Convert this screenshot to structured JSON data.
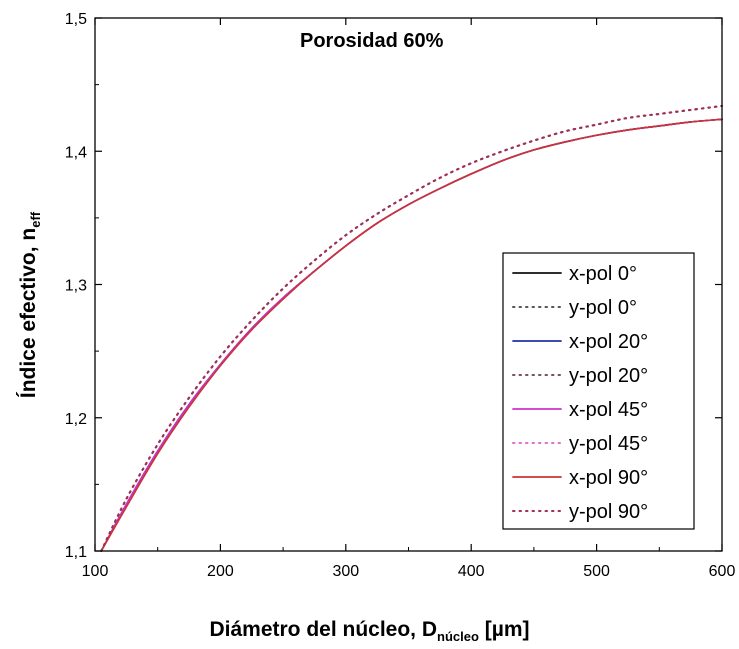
{
  "chart_data": {
    "type": "line",
    "annotation": "Porosidad 60%",
    "xlabel_main": "Diámetro del núcleo, D",
    "xlabel_sub": "núcleo",
    "xlabel_unit": " [µm]",
    "ylabel_main": "Índice efectivo, n",
    "ylabel_sub": "eff",
    "xlim": [
      100,
      600
    ],
    "ylim": [
      1.1,
      1.5
    ],
    "x_ticks": [
      100,
      200,
      300,
      400,
      500,
      600
    ],
    "x_tick_labels": [
      "100",
      "200",
      "300",
      "400",
      "500",
      "600"
    ],
    "y_ticks": [
      1.1,
      1.2,
      1.3,
      1.4,
      1.5
    ],
    "y_tick_labels": [
      "1,1",
      "1,2",
      "1,3",
      "1,4",
      "1,5"
    ],
    "grid": false,
    "legend_position": "right",
    "x": [
      105,
      125,
      150,
      175,
      200,
      225,
      250,
      275,
      300,
      325,
      350,
      375,
      400,
      425,
      450,
      475,
      500,
      525,
      550,
      575,
      600
    ],
    "series": [
      {
        "name": "x-pol 0°",
        "color": "#111111",
        "style": "solid",
        "values": [
          1.1,
          1.135,
          1.175,
          1.21,
          1.24,
          1.267,
          1.29,
          1.31,
          1.329,
          1.346,
          1.36,
          1.372,
          1.383,
          1.393,
          1.401,
          1.407,
          1.412,
          1.416,
          1.419,
          1.422,
          1.424
        ]
      },
      {
        "name": "y-pol 0°",
        "color": "#555555",
        "style": "dotted",
        "values": [
          1.1,
          1.139,
          1.18,
          1.215,
          1.246,
          1.273,
          1.297,
          1.318,
          1.337,
          1.353,
          1.367,
          1.38,
          1.391,
          1.4,
          1.408,
          1.415,
          1.42,
          1.425,
          1.428,
          1.431,
          1.434
        ]
      },
      {
        "name": "x-pol 20°",
        "color": "#2233aa",
        "style": "solid",
        "values": [
          1.1,
          1.135,
          1.175,
          1.21,
          1.24,
          1.267,
          1.29,
          1.31,
          1.329,
          1.346,
          1.36,
          1.372,
          1.383,
          1.393,
          1.401,
          1.407,
          1.412,
          1.416,
          1.419,
          1.422,
          1.424
        ]
      },
      {
        "name": "y-pol 20°",
        "color": "#7a5060",
        "style": "dotted",
        "values": [
          1.1,
          1.139,
          1.18,
          1.215,
          1.246,
          1.273,
          1.297,
          1.318,
          1.337,
          1.353,
          1.367,
          1.38,
          1.391,
          1.4,
          1.408,
          1.415,
          1.42,
          1.425,
          1.428,
          1.431,
          1.434
        ]
      },
      {
        "name": "x-pol 45°",
        "color": "#cc33cc",
        "style": "solid",
        "values": [
          1.1,
          1.135,
          1.175,
          1.21,
          1.24,
          1.267,
          1.29,
          1.31,
          1.329,
          1.346,
          1.36,
          1.372,
          1.383,
          1.393,
          1.401,
          1.407,
          1.412,
          1.416,
          1.419,
          1.422,
          1.424
        ]
      },
      {
        "name": "y-pol 45°",
        "color": "#e070c8",
        "style": "dotted",
        "values": [
          1.1,
          1.139,
          1.18,
          1.215,
          1.246,
          1.273,
          1.297,
          1.318,
          1.337,
          1.353,
          1.367,
          1.38,
          1.391,
          1.4,
          1.408,
          1.415,
          1.42,
          1.425,
          1.428,
          1.431,
          1.434
        ]
      },
      {
        "name": "x-pol 90°",
        "color": "#cc3333",
        "style": "solid",
        "values": [
          1.1,
          1.133,
          1.173,
          1.208,
          1.239,
          1.266,
          1.289,
          1.31,
          1.329,
          1.346,
          1.36,
          1.372,
          1.383,
          1.393,
          1.401,
          1.407,
          1.412,
          1.416,
          1.419,
          1.422,
          1.424
        ]
      },
      {
        "name": "y-pol 90°",
        "color": "#a03050",
        "style": "dotted",
        "values": [
          1.1,
          1.139,
          1.18,
          1.215,
          1.246,
          1.273,
          1.297,
          1.318,
          1.337,
          1.353,
          1.367,
          1.38,
          1.391,
          1.4,
          1.408,
          1.415,
          1.42,
          1.425,
          1.428,
          1.431,
          1.434
        ]
      }
    ]
  }
}
